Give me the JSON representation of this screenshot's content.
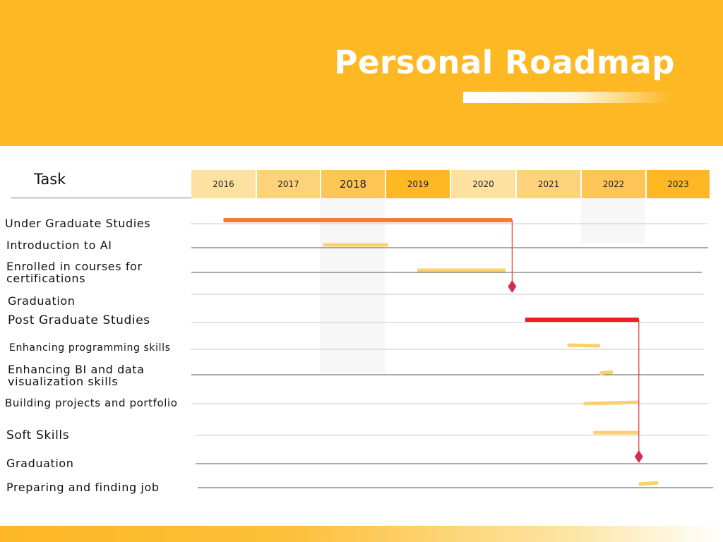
{
  "title": "Personal Roadmap",
  "task_heading": "Task",
  "colors": {
    "header": "#fdb824",
    "major_bar": "#f97b2f",
    "post_grad_bar": "#f21d1d",
    "minor_bar": "#fcd06a",
    "milestone": "#d92b4a",
    "milestone_line": "#e03a3a",
    "highlight_column": "#f7f7f7"
  },
  "chart_data": {
    "type": "gantt",
    "title": "Personal Roadmap",
    "xlabel": "",
    "ylabel": "Task",
    "years": [
      "2016",
      "2017",
      "2018",
      "2019",
      "2020",
      "2021",
      "2022",
      "2023"
    ],
    "highlighted_years": [
      "2018",
      "2022"
    ],
    "tasks": [
      {
        "label": "Under Graduate Studies",
        "start": 2016.5,
        "end": 2020.95,
        "kind": "major"
      },
      {
        "label": "Introduction to AI",
        "start": 2018.05,
        "end": 2019.05,
        "kind": "minor"
      },
      {
        "label": "Enrolled in courses for certifications",
        "start": 2019.5,
        "end": 2020.85,
        "kind": "minor"
      },
      {
        "label": "Graduation",
        "milestone": 2020.95,
        "kind": "milestone"
      },
      {
        "label": "Post Graduate Studies",
        "start": 2021.15,
        "end": 2022.9,
        "kind": "post_grad"
      },
      {
        "label": "Enhancing programming skills",
        "start": 2021.8,
        "end": 2022.3,
        "kind": "minor"
      },
      {
        "label": "Enhancing BI and data visualization skills",
        "start": 2022.3,
        "end": 2022.5,
        "kind": "minor"
      },
      {
        "label": "Building projects and portfolio",
        "start": 2022.05,
        "end": 2022.9,
        "kind": "minor"
      },
      {
        "label": "Soft Skills",
        "start": 2022.2,
        "end": 2022.9,
        "kind": "minor"
      },
      {
        "label": "Graduation",
        "milestone": 2022.9,
        "kind": "milestone"
      },
      {
        "label": "Preparing and finding job",
        "start": 2022.9,
        "end": 2023.2,
        "kind": "minor"
      }
    ],
    "milestone_links": [
      {
        "from_task": 0,
        "to_task": 3
      },
      {
        "from_task": 4,
        "to_task": 9
      }
    ]
  }
}
